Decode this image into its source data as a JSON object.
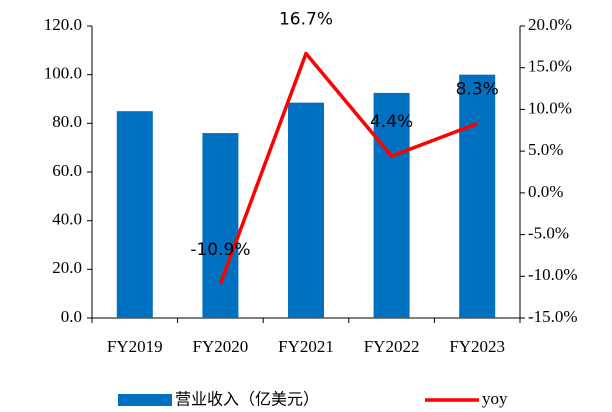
{
  "chart_data": {
    "type": "bar-line",
    "categories": [
      "FY2019",
      "FY2020",
      "FY2021",
      "FY2022",
      "FY2023"
    ],
    "series": [
      {
        "name": "营业收入（亿美元）",
        "color": "#0070c0",
        "type": "bar",
        "values": [
          85,
          76,
          88.5,
          92.5,
          100
        ]
      },
      {
        "name": "yoy",
        "color": "#ff0000",
        "type": "line",
        "axis": "y2",
        "values": [
          null,
          -10.9,
          16.7,
          4.4,
          8.3
        ],
        "value_labels": [
          null,
          "-10.9%",
          "16.7%",
          "4.4%",
          "8.3%"
        ]
      }
    ],
    "ylim": [
      0,
      120
    ],
    "yticks": [
      {
        "value": 0,
        "label": "0.0"
      },
      {
        "value": 20,
        "label": "20.0"
      },
      {
        "value": 40,
        "label": "40.0"
      },
      {
        "value": 60,
        "label": "60.0"
      },
      {
        "value": 80,
        "label": "80.0"
      },
      {
        "value": 100,
        "label": "100.0"
      },
      {
        "value": 120,
        "label": "120.0"
      }
    ],
    "y2lim": [
      -15,
      20
    ],
    "y2ticks": [
      {
        "value": -15,
        "label": "-15.0%"
      },
      {
        "value": -10,
        "label": "-10.0%"
      },
      {
        "value": -5,
        "label": "-5.0%"
      },
      {
        "value": 0,
        "label": "0.0%"
      },
      {
        "value": 5,
        "label": "5.0%"
      },
      {
        "value": 10,
        "label": "10.0%"
      },
      {
        "value": 15,
        "label": "15.0%"
      },
      {
        "value": 20,
        "label": "20.0%"
      }
    ],
    "grid": false,
    "legend": "bottom"
  }
}
